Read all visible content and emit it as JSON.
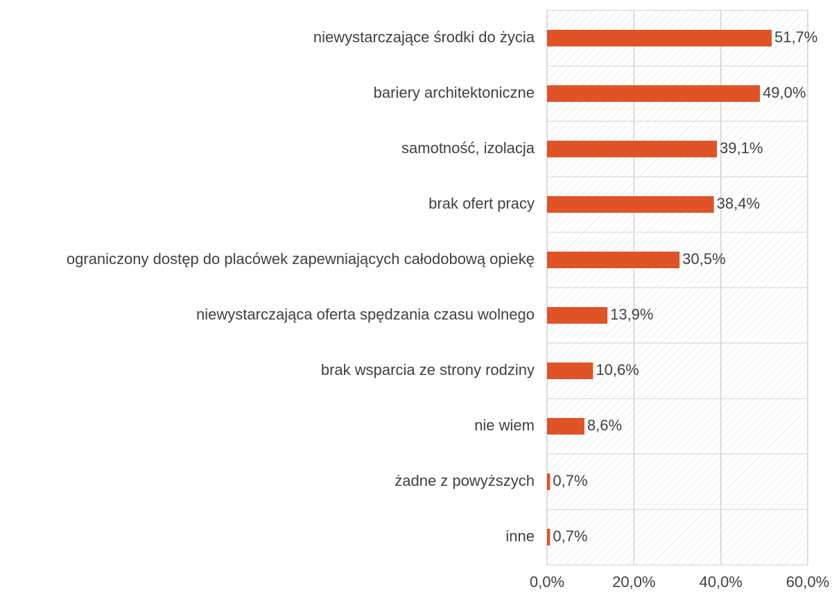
{
  "chart_data": {
    "type": "bar",
    "orientation": "horizontal",
    "categories": [
      "niewystarczające środki do życia",
      "bariery architektoniczne",
      "samotność, izolacja",
      "brak ofert pracy",
      "ograniczony dostęp do placówek zapewniających całodobową opiekę",
      "niewystarczająca oferta spędzania czasu wolnego",
      "brak wsparcia ze strony rodziny",
      "nie wiem",
      "żadne z powyższych",
      "inne"
    ],
    "values": [
      51.7,
      49.0,
      39.1,
      38.4,
      30.5,
      13.9,
      10.6,
      8.6,
      0.7,
      0.7
    ],
    "value_labels": [
      "51,7%",
      "49,0%",
      "39,1%",
      "38,4%",
      "30,5%",
      "13,9%",
      "10,6%",
      "8,6%",
      "0,7%",
      "0,7%"
    ],
    "color": "#e05326",
    "xlim": [
      0,
      60
    ],
    "xticks": [
      {
        "value": 0,
        "label": "0,0%"
      },
      {
        "value": 20,
        "label": "20,0%"
      },
      {
        "value": 40,
        "label": "40,0%"
      },
      {
        "value": 60,
        "label": "60,0%"
      }
    ],
    "grid": true
  }
}
